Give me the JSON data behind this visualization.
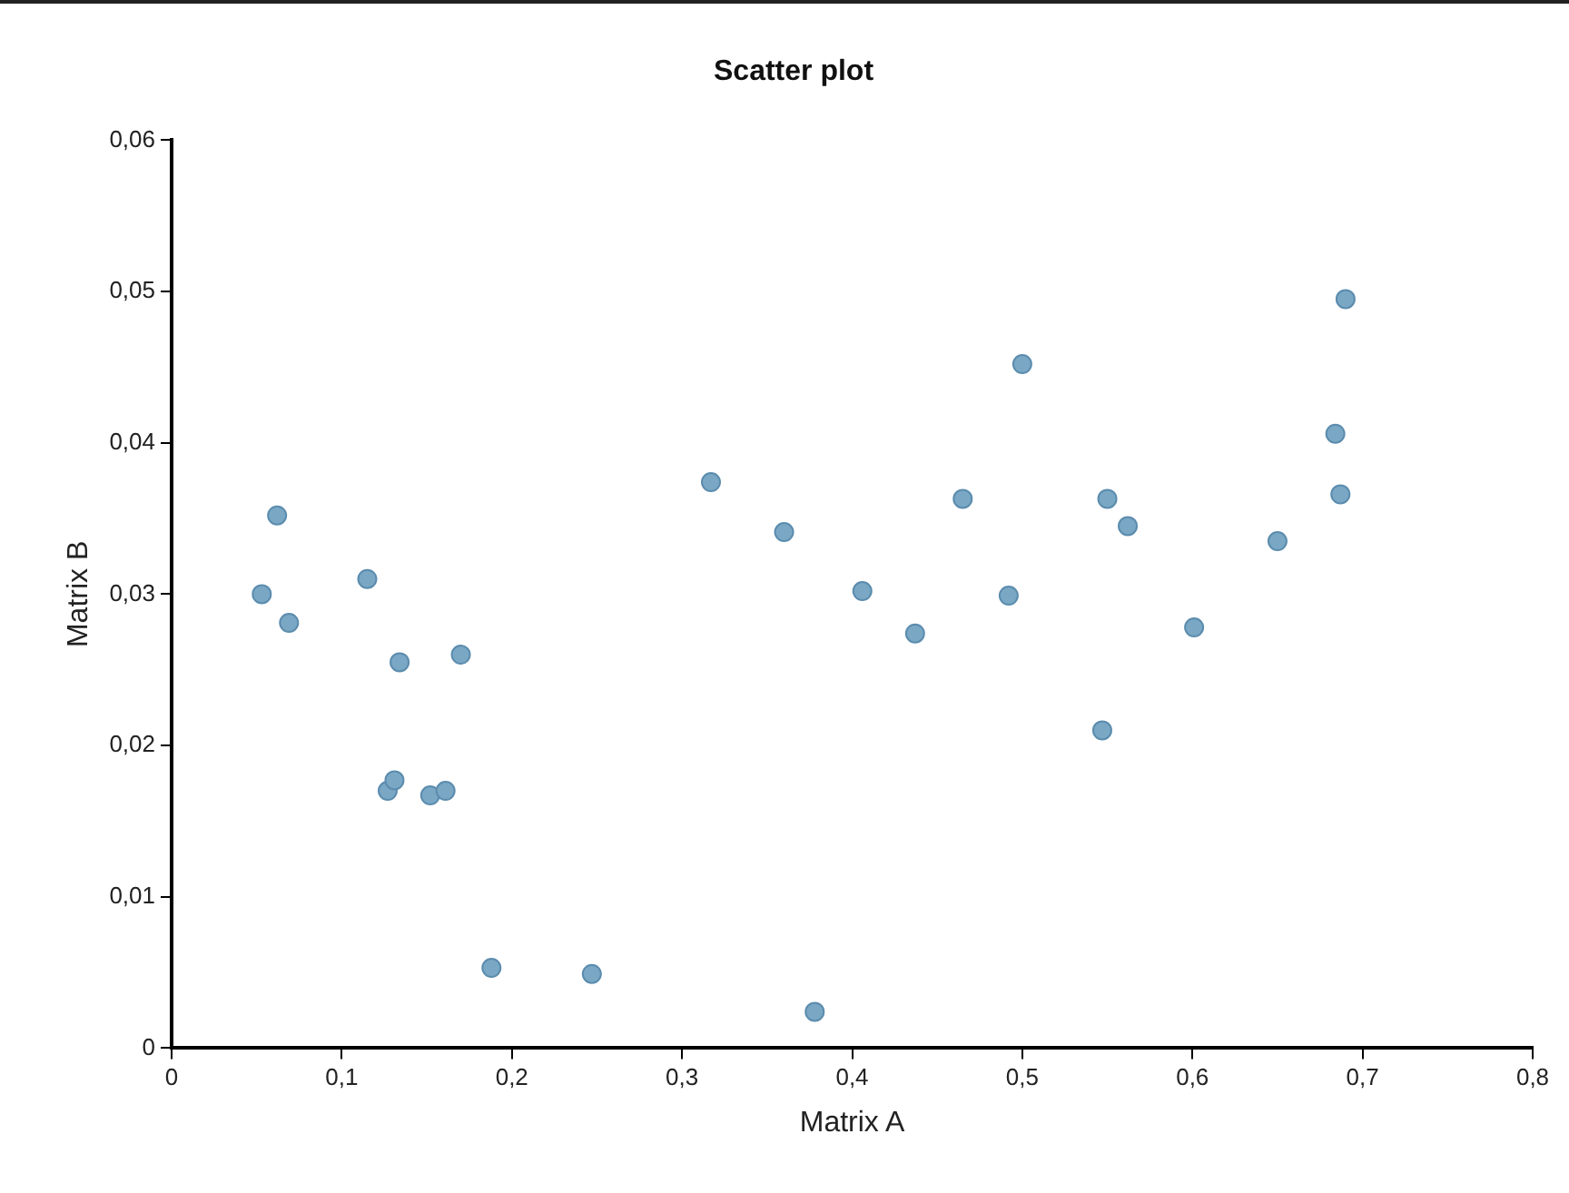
{
  "chart_data": {
    "type": "scatter",
    "title": "Scatter plot",
    "xlabel": "Matrix A",
    "ylabel": "Matrix B",
    "xlim": [
      0,
      0.8
    ],
    "ylim": [
      0,
      0.06
    ],
    "xticks": [
      {
        "value": 0,
        "label": "0"
      },
      {
        "value": 0.1,
        "label": "0,1"
      },
      {
        "value": 0.2,
        "label": "0,2"
      },
      {
        "value": 0.3,
        "label": "0,3"
      },
      {
        "value": 0.4,
        "label": "0,4"
      },
      {
        "value": 0.5,
        "label": "0,5"
      },
      {
        "value": 0.6,
        "label": "0,6"
      },
      {
        "value": 0.7,
        "label": "0,7"
      },
      {
        "value": 0.8,
        "label": "0,8"
      }
    ],
    "yticks": [
      {
        "value": 0,
        "label": "0"
      },
      {
        "value": 0.01,
        "label": "0,01"
      },
      {
        "value": 0.02,
        "label": "0,02"
      },
      {
        "value": 0.03,
        "label": "0,03"
      },
      {
        "value": 0.04,
        "label": "0,04"
      },
      {
        "value": 0.05,
        "label": "0,05"
      },
      {
        "value": 0.06,
        "label": "0,06"
      }
    ],
    "grid": false,
    "legend": false,
    "marker": "circle",
    "series": [
      {
        "color": "#7aa8c4",
        "x": [
          0.053,
          0.062,
          0.069,
          0.115,
          0.134,
          0.127,
          0.131,
          0.152,
          0.161,
          0.17,
          0.188,
          0.247,
          0.378,
          0.317,
          0.36,
          0.406,
          0.437,
          0.465,
          0.492,
          0.5,
          0.547,
          0.55,
          0.562,
          0.601,
          0.65,
          0.684,
          0.687,
          0.69
        ],
        "values": [
          0.03,
          0.0352,
          0.0281,
          0.031,
          0.0255,
          0.017,
          0.0177,
          0.0167,
          0.017,
          0.026,
          0.0053,
          0.0049,
          0.0024,
          0.0374,
          0.0341,
          0.0302,
          0.0274,
          0.0363,
          0.0299,
          0.0452,
          0.021,
          0.0363,
          0.0345,
          0.0278,
          0.0335,
          0.0406,
          0.0366,
          0.0495
        ]
      }
    ]
  }
}
